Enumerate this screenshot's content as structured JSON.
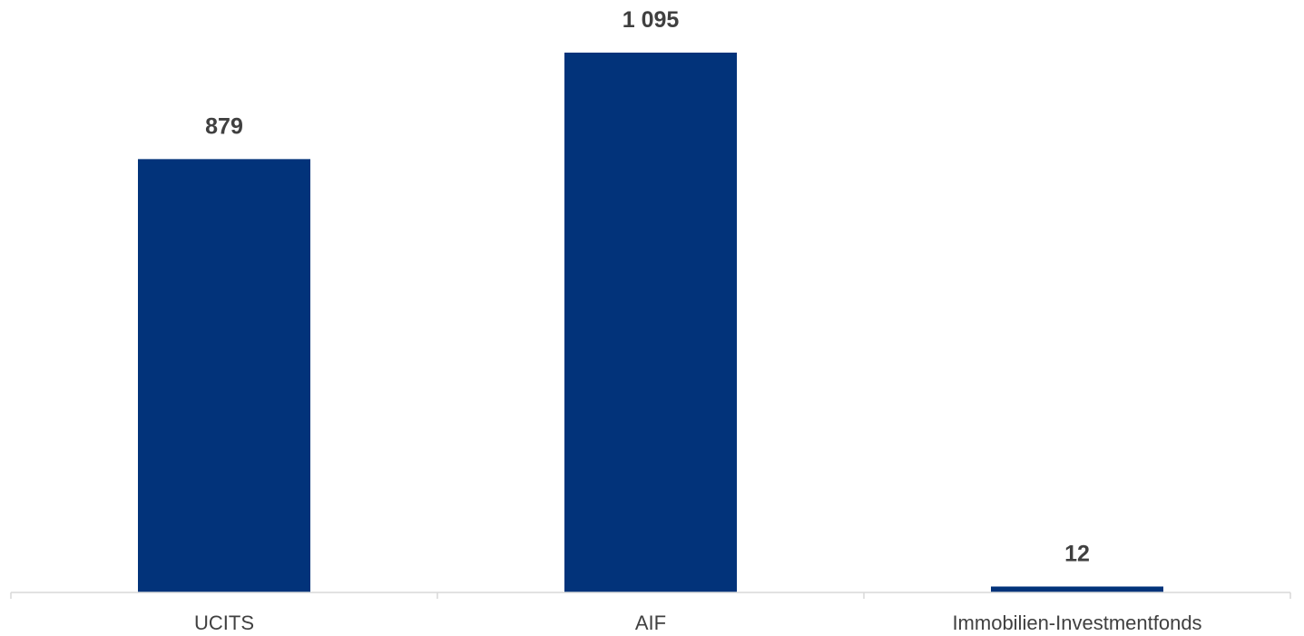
{
  "chart_data": {
    "type": "bar",
    "categories": [
      "UCITS",
      "AIF",
      "Immobilien-Investmentfonds"
    ],
    "values": [
      879,
      1095,
      12
    ],
    "value_labels": [
      "879",
      "1 095",
      "12"
    ],
    "title": "",
    "xlabel": "",
    "ylabel": "",
    "ylim": [
      0,
      1095
    ],
    "grid": false,
    "legend": "none",
    "bar_color": "#02337A",
    "axis_color": "#D9D9D9",
    "label_color": "#404040"
  }
}
